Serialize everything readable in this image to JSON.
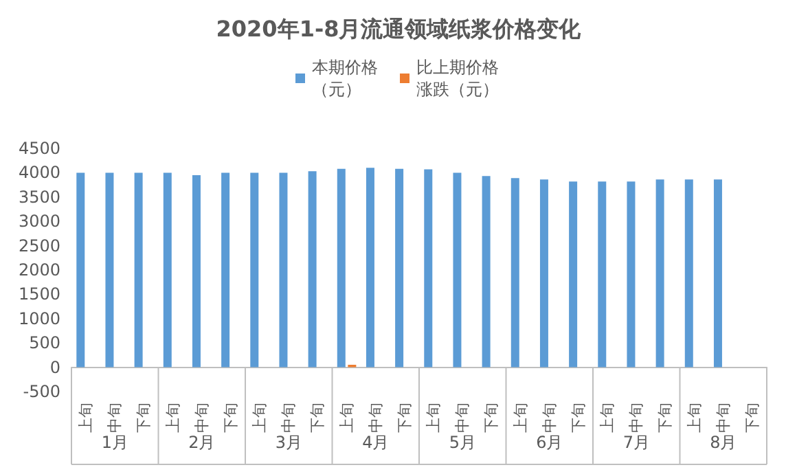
{
  "chart_data": {
    "type": "bar",
    "title": "2020年1-8月流通领域纸浆价格变化",
    "categories": [
      "上旬",
      "中旬",
      "下旬",
      "上旬",
      "中旬",
      "下旬",
      "上旬",
      "中旬",
      "下旬",
      "上旬",
      "中旬",
      "下旬",
      "上旬",
      "中旬",
      "下旬",
      "上旬",
      "中旬",
      "下旬",
      "上旬",
      "中旬",
      "下旬",
      "上旬",
      "中旬",
      "下旬"
    ],
    "series": [
      {
        "name": "本期价格（元）",
        "color": "#5b9bd5",
        "values": [
          4000,
          4000,
          4000,
          4000,
          3950,
          4000,
          4000,
          4000,
          4030,
          4080,
          4100,
          4080,
          4070,
          4000,
          3930,
          3890,
          3860,
          3820,
          3820,
          3820,
          3860,
          3860,
          3860,
          null
        ]
      },
      {
        "name": "比上期价格涨跌（元）",
        "color": "#ed7d31",
        "values": [
          null,
          null,
          null,
          null,
          null,
          null,
          null,
          null,
          null,
          50,
          null,
          null,
          null,
          null,
          null,
          null,
          null,
          null,
          null,
          null,
          null,
          null,
          null,
          null
        ]
      }
    ],
    "annotations": [
      "1月",
      "2月",
      "3月",
      "4月",
      "5月",
      "6月",
      "7月",
      "8月"
    ],
    "ylim": [
      -500,
      4500
    ],
    "yticks": [
      -500,
      0,
      500,
      1000,
      1500,
      2000,
      2500,
      3000,
      3500,
      4000,
      4500
    ],
    "grid": false,
    "legend": "top"
  }
}
